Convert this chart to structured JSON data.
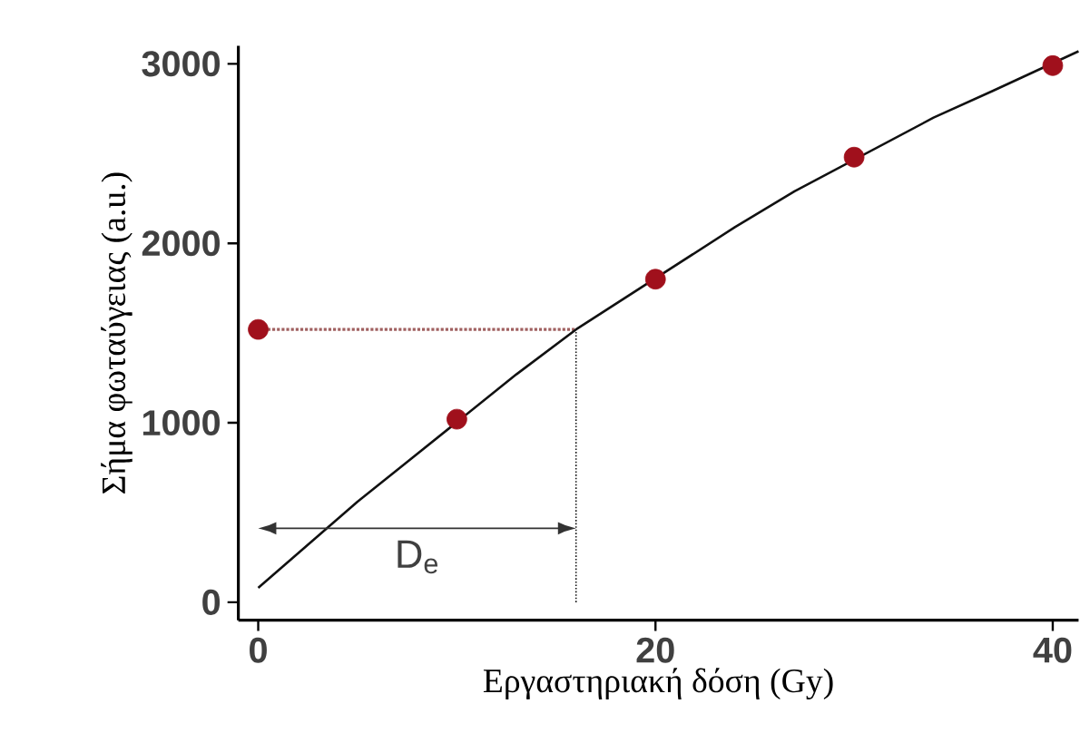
{
  "chart_data": {
    "type": "scatter",
    "xlabel": "Εργαστηριακή δόση (Gy)",
    "ylabel": "Σήμα φωταύγειας (a.u.)",
    "marker": "circle",
    "grid": false,
    "xlim": [
      -1,
      41.3
    ],
    "ylim": [
      -100,
      3100
    ],
    "xticks": [
      0,
      20,
      40
    ],
    "yticks": [
      0,
      1000,
      2000,
      3000
    ],
    "series": [
      {
        "color": "#a0101c",
        "x": [
          0,
          10,
          20,
          30,
          40
        ],
        "values": [
          1520,
          1020,
          1800,
          2480,
          2990
        ]
      },
      {
        "type": "line",
        "color": "#111111",
        "marker": "none",
        "x": [
          0,
          5,
          13,
          16,
          24,
          27,
          34,
          37,
          41.3
        ],
        "values": [
          80,
          560,
          1270,
          1520,
          2090,
          2290,
          2700,
          2850,
          3070
        ]
      }
    ],
    "ref_lines": [
      {
        "axis": "y",
        "value": 1520,
        "color": "#a06060",
        "line_style": "dotted"
      },
      {
        "axis": "x",
        "value": 16,
        "color": "#111111",
        "line_style": "dotted"
      }
    ],
    "annotations": [
      "D$_{e}$"
    ]
  }
}
